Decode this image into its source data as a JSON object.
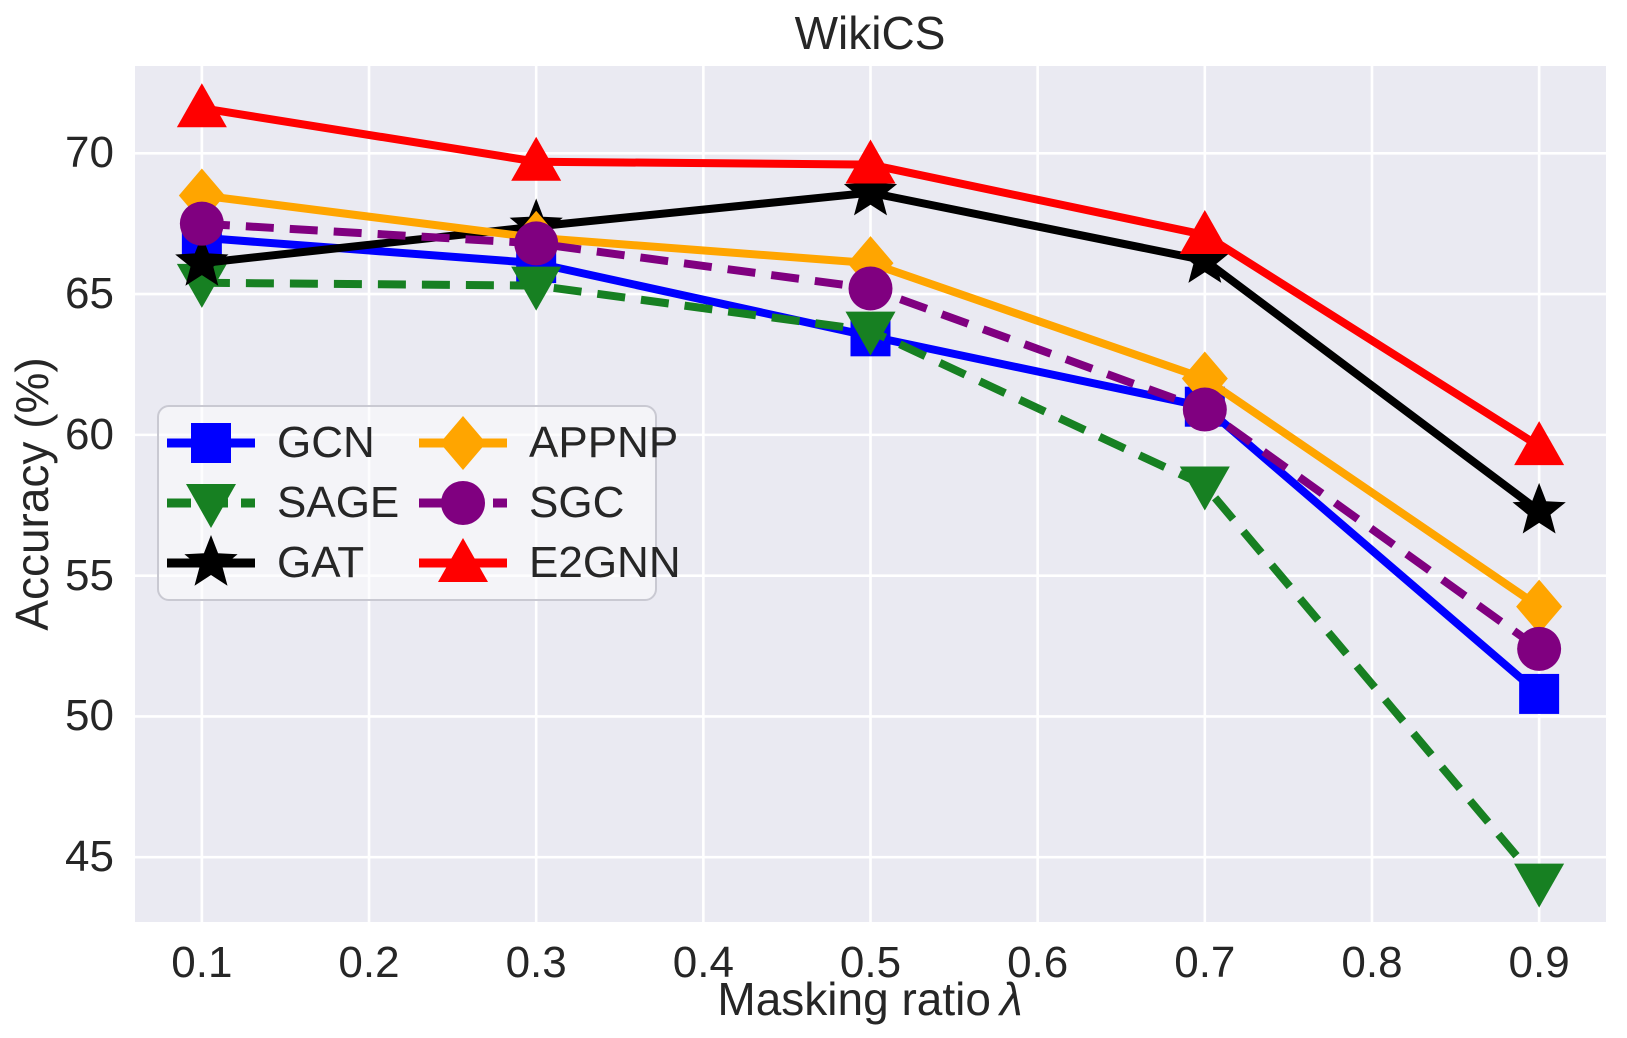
{
  "title": "WikiCS",
  "x_axis": {
    "label_text": "Masking ratio",
    "label_symbol": "λ",
    "tick_values": [
      0.1,
      0.2,
      0.3,
      0.4,
      0.5,
      0.6,
      0.7,
      0.8,
      0.9
    ],
    "tick_labels": [
      "0.1",
      "0.2",
      "0.3",
      "0.4",
      "0.5",
      "0.6",
      "0.7",
      "0.8",
      "0.9"
    ]
  },
  "y_axis": {
    "label": "Accuracy (%)",
    "tick_values": [
      45,
      50,
      55,
      60,
      65,
      70
    ],
    "tick_labels": [
      "45",
      "50",
      "55",
      "60",
      "65",
      "70"
    ]
  },
  "colors": {
    "plot_background": "#eaeaf2",
    "grid": "#ffffff",
    "text": "#262626",
    "legend_border": "#c9c9d2"
  },
  "chart_data": {
    "type": "line",
    "title": "WikiCS",
    "xlabel": "Masking ratio λ",
    "ylabel": "Accuracy (%)",
    "x": [
      0.1,
      0.3,
      0.5,
      0.7,
      0.9
    ],
    "xlim": [
      0.06,
      0.94
    ],
    "ylim": [
      42.7,
      73.1
    ],
    "grid": true,
    "legend_position": "center left",
    "legend_columns": 2,
    "series": [
      {
        "name": "GCN",
        "color": "#0000ff",
        "marker": "square",
        "linestyle": "solid",
        "values": [
          67.0,
          66.1,
          63.5,
          61.0,
          50.8
        ]
      },
      {
        "name": "SAGE",
        "color": "#178022",
        "marker": "triangle_down",
        "linestyle": "dashed",
        "values": [
          65.4,
          65.3,
          63.7,
          58.2,
          44.1
        ]
      },
      {
        "name": "GAT",
        "color": "#000000",
        "marker": "star",
        "linestyle": "solid",
        "values": [
          66.1,
          67.4,
          68.6,
          66.2,
          57.3
        ]
      },
      {
        "name": "APPNP",
        "color": "#ffa500",
        "marker": "diamond",
        "linestyle": "solid",
        "values": [
          68.5,
          67.0,
          66.1,
          62.0,
          53.9
        ]
      },
      {
        "name": "SGC",
        "color": "#800080",
        "marker": "circle",
        "linestyle": "dashed",
        "values": [
          67.5,
          66.8,
          65.2,
          60.9,
          52.4
        ]
      },
      {
        "name": "E2GNN",
        "color": "#ff0000",
        "marker": "triangle_up",
        "linestyle": "solid",
        "values": [
          71.6,
          69.7,
          69.6,
          67.1,
          59.6
        ]
      }
    ]
  }
}
